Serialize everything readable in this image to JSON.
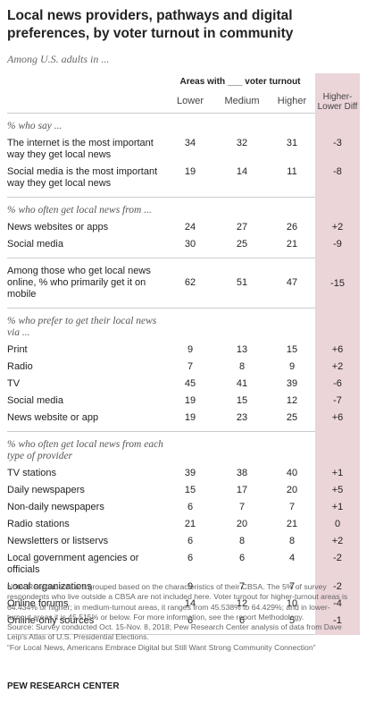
{
  "title": "Local news providers, pathways and digital preferences, by voter turnout in community",
  "subtitle": "Among U.S. adults in ...",
  "table": {
    "group_header": "Areas with ___ voter turnout",
    "columns": [
      "Lower",
      "Medium",
      "Higher",
      "Higher-Lower Diff"
    ],
    "sections": [
      {
        "heading": "% who say ...",
        "rows": [
          {
            "label": "The internet is the most important way they get local news",
            "values": [
              "34",
              "32",
              "31",
              "-3"
            ]
          },
          {
            "label": "Social media is the most important way they get local news",
            "values": [
              "19",
              "14",
              "11",
              "-8"
            ]
          }
        ]
      },
      {
        "heading": "% who often get local news from ...",
        "rows": [
          {
            "label": "News websites or apps",
            "values": [
              "24",
              "27",
              "26",
              "+2"
            ]
          },
          {
            "label": "Social media",
            "values": [
              "30",
              "25",
              "21",
              "-9"
            ]
          }
        ]
      },
      {
        "rows": [
          {
            "label": "Among those who get local news online, % who primarily get it on mobile",
            "values": [
              "62",
              "51",
              "47",
              "-15"
            ]
          }
        ]
      },
      {
        "heading": "% who prefer to get their local news via ...",
        "rows": [
          {
            "label": "Print",
            "values": [
              "9",
              "13",
              "15",
              "+6"
            ]
          },
          {
            "label": "Radio",
            "values": [
              "7",
              "8",
              "9",
              "+2"
            ]
          },
          {
            "label": "TV",
            "values": [
              "45",
              "41",
              "39",
              "-6"
            ]
          },
          {
            "label": "Social media",
            "values": [
              "19",
              "15",
              "12",
              "-7"
            ]
          },
          {
            "label": "News website or app",
            "values": [
              "19",
              "23",
              "25",
              "+6"
            ]
          }
        ]
      },
      {
        "heading": "% who often get local news from each type of provider",
        "rows": [
          {
            "label": "TV stations",
            "values": [
              "39",
              "38",
              "40",
              "+1"
            ]
          },
          {
            "label": "Daily newspapers",
            "values": [
              "15",
              "17",
              "20",
              "+5"
            ]
          },
          {
            "label": "Non-daily newspapers",
            "values": [
              "6",
              "7",
              "7",
              "+1"
            ]
          },
          {
            "label": "Radio stations",
            "values": [
              "21",
              "20",
              "21",
              "0"
            ]
          },
          {
            "label": "Newsletters or listservs",
            "values": [
              "6",
              "8",
              "8",
              "+2"
            ]
          },
          {
            "label": "Local government agencies or officials",
            "values": [
              "6",
              "6",
              "4",
              "-2"
            ]
          },
          {
            "label": "Local organizations",
            "values": [
              "9",
              "7",
              "7",
              "-2"
            ]
          },
          {
            "label": "Online forums",
            "values": [
              "14",
              "12",
              "10",
              "-4"
            ]
          },
          {
            "label": "Online-only sources",
            "values": [
              "6",
              "6",
              "5",
              "-1"
            ]
          }
        ]
      }
    ]
  },
  "note": [
    "Note: Respondents are grouped based on the characteristics of their CBSA. The 5% of survey",
    "respondents who live outside a CBSA are not included here. Voter turnout for higher-turnout areas is",
    "64.434% or higher; in medium-turnout areas, it ranges from 45.538% to 64.429%; and in lower-",
    "turnout areas it is 45.515% or below. For more information, see the report Methodology.",
    "Source: Survey conducted Oct. 15-Nov. 8, 2018; Pew Research Center analysis of data from Dave",
    "Leip's Atlas of U.S. Presidential Elections.",
    "“For Local News, Americans Embrace Digital but Still Want Strong Community Connection”"
  ],
  "footer": "PEW RESEARCH CENTER"
}
